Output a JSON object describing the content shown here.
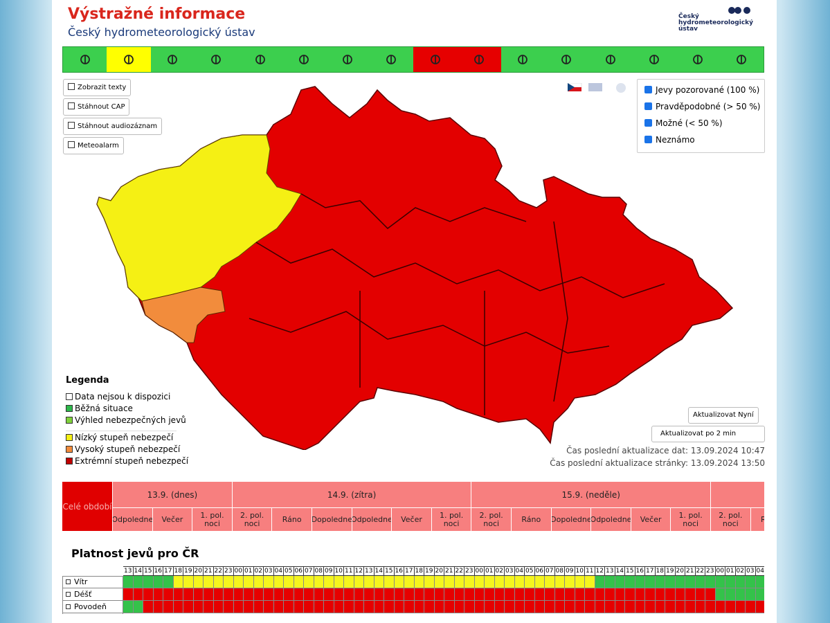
{
  "header": {
    "title": "Výstražné informace",
    "subtitle": "Český hydrometeorologický ústav",
    "logo_text": [
      "Český",
      "hydrometeorologický",
      "ústav"
    ]
  },
  "toolbar": [
    {
      "color": "#3ccf4e"
    },
    {
      "color": "#ffff00"
    },
    {
      "color": "#3ccf4e"
    },
    {
      "color": "#3ccf4e"
    },
    {
      "color": "#3ccf4e"
    },
    {
      "color": "#3ccf4e"
    },
    {
      "color": "#3ccf4e"
    },
    {
      "color": "#3ccf4e"
    },
    {
      "color": "#e60000"
    },
    {
      "color": "#e60000"
    },
    {
      "color": "#3ccf4e"
    },
    {
      "color": "#3ccf4e"
    },
    {
      "color": "#3ccf4e"
    },
    {
      "color": "#3ccf4e"
    },
    {
      "color": "#3ccf4e"
    },
    {
      "color": "#3ccf4e"
    }
  ],
  "buttons": [
    "Zobrazit texty",
    "Stáhnout CAP",
    "Stáhnout audiozáznam",
    "Meteoalarm"
  ],
  "filters": [
    "Jevy pozorované (100 %)",
    "Pravděpodobné (> 50 %)",
    "Možné (< 50 %)",
    "Neznámo"
  ],
  "legend": {
    "title": "Legenda",
    "items": [
      {
        "label": "Data nejsou k dispozici",
        "color": "#ffffff"
      },
      {
        "label": "Běžná situace",
        "color": "#2db84b"
      },
      {
        "label": "Výhled nebezpečných jevů",
        "color": "#7fd13b"
      },
      {
        "label": "Nízký stupeň nebezpečí",
        "color": "#f5f014"
      },
      {
        "label": "Vysoký stupeň nebezpečí",
        "color": "#f28c3c"
      },
      {
        "label": "Extrémní stupeň nebezpečí",
        "color": "#c00000"
      }
    ]
  },
  "refresh": {
    "button": "Aktualizovat Nyní",
    "select": "Aktualizovat po 2 min",
    "data_update": "Čas poslední aktualizace dat: 13.09.2024 10:47",
    "page_update": "Čas poslední aktualizace stránky: 13.09.2024 13:50"
  },
  "timeline": {
    "whole": "Celé období",
    "days": [
      {
        "label": "13.9. (dnes)",
        "periods": [
          "Odpoledne",
          "Večer",
          "1. pol. noci"
        ]
      },
      {
        "label": "14.9. (zítra)",
        "periods": [
          "2. pol. noci",
          "Ráno",
          "Dopoledne",
          "Odpoledne",
          "Večer",
          "1. pol. noci"
        ]
      },
      {
        "label": "15.9. (neděle)",
        "periods": [
          "2. pol. noci",
          "Ráno",
          "Dopoledne",
          "Odpoledne",
          "Večer",
          "1. pol. noci"
        ]
      },
      {
        "periods": [
          "2. pol. noci",
          "Ráno"
        ]
      }
    ]
  },
  "validity": {
    "title": "Platnost jevů pro ČR",
    "hours": [
      "13",
      "14",
      "15",
      "16",
      "17",
      "18",
      "19",
      "20",
      "21",
      "22",
      "23",
      "00",
      "01",
      "02",
      "03",
      "04",
      "05",
      "06",
      "07",
      "08",
      "09",
      "10",
      "11",
      "12",
      "13",
      "14",
      "15",
      "16",
      "17",
      "18",
      "19",
      "20",
      "21",
      "22",
      "23",
      "00",
      "01",
      "02",
      "03",
      "04",
      "05",
      "06",
      "07",
      "08",
      "09",
      "10",
      "11",
      "12",
      "13",
      "14",
      "15",
      "16",
      "17",
      "18",
      "19",
      "20",
      "21",
      "22",
      "23",
      "00",
      "01",
      "02",
      "03",
      "04",
      "05"
    ],
    "rows": [
      {
        "label": "Vítr",
        "cells": [
          "#34c24a",
          "#34c24a",
          "#34c24a",
          "#34c24a",
          "#34c24a",
          "#f5f51e",
          "#f5f51e",
          "#f5f51e",
          "#f5f51e",
          "#f5f51e",
          "#f5f51e",
          "#f5f51e",
          "#f5f51e",
          "#f5f51e",
          "#f5f51e",
          "#f5f51e",
          "#f5f51e",
          "#f5f51e",
          "#f5f51e",
          "#f5f51e",
          "#f5f51e",
          "#f5f51e",
          "#f5f51e",
          "#f5f51e",
          "#f5f51e",
          "#f5f51e",
          "#f5f51e",
          "#f5f51e",
          "#f5f51e",
          "#f5f51e",
          "#f5f51e",
          "#f5f51e",
          "#f5f51e",
          "#f5f51e",
          "#f5f51e",
          "#f5f51e",
          "#f5f51e",
          "#f5f51e",
          "#f5f51e",
          "#f5f51e",
          "#f5f51e",
          "#f5f51e",
          "#f5f51e",
          "#f5f51e",
          "#f5f51e",
          "#f5f51e",
          "#f5f51e",
          "#34c24a",
          "#34c24a",
          "#34c24a",
          "#34c24a",
          "#34c24a",
          "#34c24a",
          "#34c24a",
          "#34c24a",
          "#34c24a",
          "#34c24a",
          "#34c24a",
          "#34c24a",
          "#34c24a",
          "#34c24a",
          "#34c24a",
          "#34c24a",
          "#34c24a",
          "#34c24a"
        ]
      },
      {
        "label": "Déšť",
        "cells": [
          "#e60000",
          "#e60000",
          "#e60000",
          "#e60000",
          "#e60000",
          "#e60000",
          "#e60000",
          "#e60000",
          "#e60000",
          "#e60000",
          "#e60000",
          "#e60000",
          "#e60000",
          "#e60000",
          "#e60000",
          "#e60000",
          "#e60000",
          "#e60000",
          "#e60000",
          "#e60000",
          "#e60000",
          "#e60000",
          "#e60000",
          "#e60000",
          "#e60000",
          "#e60000",
          "#e60000",
          "#e60000",
          "#e60000",
          "#e60000",
          "#e60000",
          "#e60000",
          "#e60000",
          "#e60000",
          "#e60000",
          "#e60000",
          "#e60000",
          "#e60000",
          "#e60000",
          "#e60000",
          "#e60000",
          "#e60000",
          "#e60000",
          "#e60000",
          "#e60000",
          "#e60000",
          "#e60000",
          "#e60000",
          "#e60000",
          "#e60000",
          "#e60000",
          "#e60000",
          "#e60000",
          "#e60000",
          "#e60000",
          "#e60000",
          "#e60000",
          "#e60000",
          "#e60000",
          "#34c24a",
          "#34c24a",
          "#34c24a",
          "#34c24a",
          "#34c24a",
          "#34c24a"
        ]
      },
      {
        "label": "Povodeň",
        "cells": [
          "#34c24a",
          "#34c24a",
          "#e60000",
          "#e60000",
          "#e60000",
          "#e60000",
          "#e60000",
          "#e60000",
          "#e60000",
          "#e60000",
          "#e60000",
          "#e60000",
          "#e60000",
          "#e60000",
          "#e60000",
          "#e60000",
          "#e60000",
          "#e60000",
          "#e60000",
          "#e60000",
          "#e60000",
          "#e60000",
          "#e60000",
          "#e60000",
          "#e60000",
          "#e60000",
          "#e60000",
          "#e60000",
          "#e60000",
          "#e60000",
          "#e60000",
          "#e60000",
          "#e60000",
          "#e60000",
          "#e60000",
          "#e60000",
          "#e60000",
          "#e60000",
          "#e60000",
          "#e60000",
          "#e60000",
          "#e60000",
          "#e60000",
          "#e60000",
          "#e60000",
          "#e60000",
          "#e60000",
          "#e60000",
          "#e60000",
          "#e60000",
          "#e60000",
          "#e60000",
          "#e60000",
          "#e60000",
          "#e60000",
          "#e60000",
          "#e60000",
          "#e60000",
          "#e60000",
          "#e60000",
          "#e60000",
          "#e60000",
          "#e60000",
          "#e60000",
          "#e60000"
        ]
      }
    ]
  }
}
